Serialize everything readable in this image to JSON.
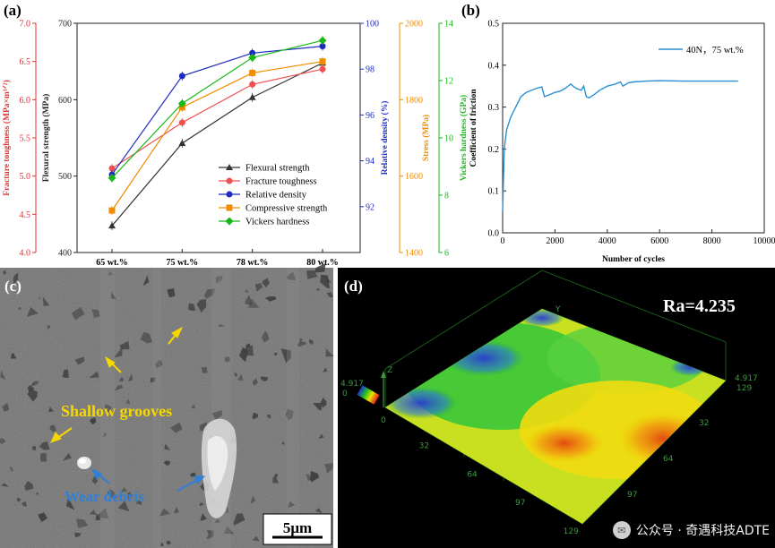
{
  "panels": {
    "a": {
      "label": "(a)"
    },
    "b": {
      "label": "(b)"
    },
    "c": {
      "label": "(c)"
    },
    "d": {
      "label": "(d)"
    }
  },
  "chart_data": [
    {
      "id": "a",
      "type": "line",
      "categories": [
        "65 wt.%",
        "75 wt.%",
        "78 wt.%",
        "80 wt.%"
      ],
      "axes": [
        {
          "key": "toughness",
          "label": "Fracture toughness (MPa×m¹ᐟ²)",
          "range": [
            4.0,
            7.0
          ],
          "ticks": [
            "4.0",
            "4.5",
            "5.0",
            "5.5",
            "6.0",
            "6.5",
            "7.0"
          ],
          "color": "#e03030"
        },
        {
          "key": "flexural",
          "label": "Flexural strength (MPa)",
          "range": [
            400,
            700
          ],
          "ticks": [
            "400",
            "500",
            "600",
            "700"
          ],
          "color": "#222222"
        },
        {
          "key": "density",
          "label": "Relative density (%)",
          "range": [
            90,
            100
          ],
          "ticks": [
            "92",
            "94",
            "96",
            "98",
            "100"
          ],
          "color": "#1f2bbf"
        },
        {
          "key": "stress",
          "label": "Stress (MPa)",
          "range": [
            1400,
            2000
          ],
          "ticks": [
            "1400",
            "1600",
            "1800",
            "2000"
          ],
          "color": "#f08c00"
        },
        {
          "key": "hardness",
          "label": "Vickers hardness (GPa)",
          "range": [
            6,
            14
          ],
          "ticks": [
            "6",
            "8",
            "10",
            "12",
            "14"
          ],
          "color": "#18b818"
        }
      ],
      "series": [
        {
          "name": "Flexural strength",
          "axis": "flexural",
          "color": "#333333",
          "marker": "triangle",
          "values": [
            435,
            543,
            603,
            648
          ]
        },
        {
          "name": "Fracture toughness",
          "axis": "toughness",
          "color": "#f05050",
          "marker": "circle",
          "values": [
            5.1,
            5.7,
            6.2,
            6.4
          ]
        },
        {
          "name": "Relative density",
          "axis": "density",
          "color": "#1f2bbf",
          "marker": "circle",
          "values": [
            93.4,
            97.7,
            98.7,
            99.0
          ]
        },
        {
          "name": "Compressive strength",
          "axis": "stress",
          "color": "#f08c00",
          "marker": "square",
          "values": [
            1510,
            1780,
            1870,
            1900
          ]
        },
        {
          "name": "Vickers hardness",
          "axis": "hardness",
          "color": "#18b818",
          "marker": "diamond",
          "values": [
            8.6,
            11.2,
            12.8,
            13.4
          ]
        }
      ],
      "legend_position": "bottom-right"
    },
    {
      "id": "b",
      "type": "line",
      "xlabel": "Number of cycles",
      "ylabel": "Coefficient of friction",
      "xlim": [
        0,
        10000
      ],
      "ylim": [
        0.0,
        0.5
      ],
      "xticks": [
        "0",
        "2000",
        "4000",
        "6000",
        "8000",
        "10000"
      ],
      "yticks": [
        "0.0",
        "0.1",
        "0.2",
        "0.3",
        "0.4",
        "0.5"
      ],
      "series": [
        {
          "name": "40N，75 wt.%",
          "color": "#2a8fd6",
          "x": [
            0,
            60,
            150,
            300,
            500,
            700,
            900,
            1100,
            1300,
            1500,
            1600,
            1800,
            2000,
            2200,
            2400,
            2600,
            2800,
            3000,
            3100,
            3200,
            3300,
            3500,
            3700,
            4000,
            4300,
            4500,
            4600,
            4800,
            5000,
            5500,
            6000,
            7000,
            8000,
            9000
          ],
          "values": [
            0.05,
            0.2,
            0.245,
            0.275,
            0.3,
            0.325,
            0.335,
            0.34,
            0.345,
            0.348,
            0.325,
            0.33,
            0.335,
            0.338,
            0.345,
            0.355,
            0.345,
            0.34,
            0.35,
            0.325,
            0.322,
            0.33,
            0.34,
            0.35,
            0.355,
            0.36,
            0.35,
            0.358,
            0.36,
            0.362,
            0.363,
            0.362,
            0.362,
            0.362
          ]
        }
      ],
      "legend_position": "top-right"
    }
  ],
  "sem": {
    "annotation_grooves": "Shallow grooves",
    "annotation_debris": "Wear debris",
    "scale_bar": "5μm"
  },
  "profile": {
    "ra_label": "Ra=4.235",
    "axis_ticks_left": [
      "32",
      "64",
      "97",
      "129"
    ],
    "axis_ticks_right": [
      "32",
      "64",
      "97"
    ],
    "z_left_top": "4.917",
    "z_left_bottom": "0",
    "z_right_top": "4.917",
    "z_right_sub": "129",
    "z_axis": "Z",
    "y_axis": "Y"
  },
  "watermark": {
    "icon": "wechat-icon",
    "text": "公众号 · 奇遇科技ADTE"
  }
}
